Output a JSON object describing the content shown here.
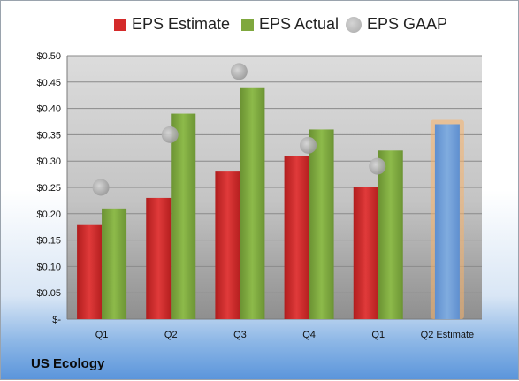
{
  "legend": {
    "estimate": "EPS Estimate",
    "actual": "EPS Actual",
    "gaap": "EPS GAAP"
  },
  "colors": {
    "estimate": "#d42a2a",
    "actual": "#7fa83e",
    "gaap": "#a9a9a9",
    "projection": "#6f9ed8",
    "projection_glow": "#f7b36a"
  },
  "company": "US Ecology",
  "chart_data": {
    "type": "bar",
    "categories": [
      "Q1",
      "Q2",
      "Q3",
      "Q4",
      "Q1",
      "Q2 Estimate"
    ],
    "series": [
      {
        "name": "EPS Estimate",
        "values": [
          0.18,
          0.23,
          0.28,
          0.31,
          0.25,
          null
        ]
      },
      {
        "name": "EPS Actual",
        "values": [
          0.21,
          0.39,
          0.44,
          0.36,
          0.32,
          null
        ]
      },
      {
        "name": "EPS GAAP",
        "values": [
          0.25,
          0.35,
          0.47,
          0.33,
          0.29,
          null
        ]
      }
    ],
    "projection": {
      "category": "Q2 Estimate",
      "value": 0.37
    },
    "yticks": [
      "$-",
      "$0.05",
      "$0.10",
      "$0.15",
      "$0.20",
      "$0.25",
      "$0.30",
      "$0.35",
      "$0.40",
      "$0.45",
      "$0.50"
    ],
    "ylim": [
      0,
      0.5
    ],
    "grid": true,
    "legend_position": "top"
  }
}
